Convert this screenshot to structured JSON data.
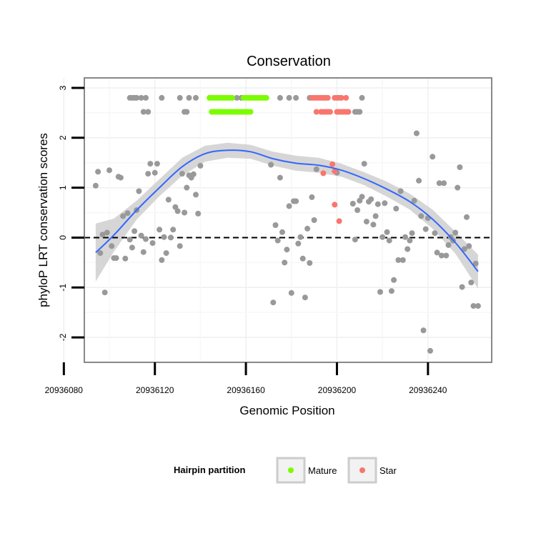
{
  "chart_data": {
    "type": "scatter",
    "title": "Conservation",
    "xlabel": "Genomic Position",
    "ylabel": "phyloP LRT conservation scores",
    "x_reversed": true,
    "xlim": [
      20936089,
      20936268
    ],
    "ylim": [
      -2.5,
      3.2
    ],
    "x_ticks": [
      20936240,
      20936200,
      20936160,
      20936120,
      20936080
    ],
    "x_tick_labels": [
      "20936240",
      "20936200",
      "20936160",
      "20936120",
      "20936080"
    ],
    "y_ticks": [
      -2,
      -1,
      0,
      1,
      2,
      3
    ],
    "y_tick_labels": [
      "-2",
      "-1",
      "0",
      "1",
      "2",
      "3"
    ],
    "reference_line": {
      "y": 0,
      "style": "dashed"
    },
    "grid": true,
    "colors": {
      "scores": "#999999",
      "mature": "#7cfc00",
      "star": "#f8766d",
      "smooth": "#3366ff",
      "band": "#cccccc"
    },
    "legend": {
      "title": "Hairpin partition",
      "placement": "bottom",
      "entries": [
        {
          "label": "Mature",
          "color": "#7cfc00"
        },
        {
          "label": "Star",
          "color": "#f8766d"
        }
      ]
    },
    "series": [
      {
        "role": "scores",
        "color": "#999999",
        "points": [
          [
            20936262,
            -1.37
          ],
          [
            20936261,
            -0.52
          ],
          [
            20936260,
            -1.37
          ],
          [
            20936259,
            -0.9
          ],
          [
            20936258,
            -0.17
          ],
          [
            20936257,
            0.41
          ],
          [
            20936256,
            -0.23
          ],
          [
            20936255,
            -0.99
          ],
          [
            20936254,
            1.41
          ],
          [
            20936253,
            1.0
          ],
          [
            20936252,
            0.1
          ],
          [
            20936251,
            -0.06
          ],
          [
            20936250,
            0.01
          ],
          [
            20936249,
            -0.15
          ],
          [
            20936248,
            -0.36
          ],
          [
            20936247,
            1.09
          ],
          [
            20936246,
            -0.36
          ],
          [
            20936245,
            1.09
          ],
          [
            20936244,
            -0.3
          ],
          [
            20936243,
            0.09
          ],
          [
            20936242,
            1.62
          ],
          [
            20936241,
            -2.27
          ],
          [
            20936240,
            0.39
          ],
          [
            20936239,
            0.17
          ],
          [
            20936238,
            -1.86
          ],
          [
            20936237,
            0.43
          ],
          [
            20936236,
            1.14
          ],
          [
            20936235,
            2.09
          ],
          [
            20936234,
            0.74
          ],
          [
            20936233,
            0.09
          ],
          [
            20936232,
            -0.06
          ],
          [
            20936231,
            -0.23
          ],
          [
            20936230,
            0.01
          ],
          [
            20936229,
            -0.45
          ],
          [
            20936228,
            0.93
          ],
          [
            20936227,
            -0.45
          ],
          [
            20936226,
            0.58
          ],
          [
            20936225,
            -0.85
          ],
          [
            20936224,
            -1.07
          ],
          [
            20936223,
            -0.06
          ],
          [
            20936222,
            0.11
          ],
          [
            20936221,
            0.69
          ],
          [
            20936220,
            0.01
          ],
          [
            20936219,
            -1.09
          ],
          [
            20936218,
            0.67
          ],
          [
            20936217,
            0.43
          ],
          [
            20936216,
            0.26
          ],
          [
            20936215,
            0.77
          ],
          [
            20936214,
            0.72
          ],
          [
            20936213,
            0.32
          ],
          [
            20936212,
            1.48
          ],
          [
            20936211,
            0.82
          ],
          [
            20936210,
            0.74
          ],
          [
            20936209,
            0.55
          ],
          [
            20936208,
            -0.04
          ],
          [
            20936207,
            0.68
          ],
          [
            20936200,
            1.3
          ],
          [
            20936191,
            1.37
          ],
          [
            20936190,
            0.35
          ],
          [
            20936189,
            0.81
          ],
          [
            20936188,
            -0.51
          ],
          [
            20936187,
            0.18
          ],
          [
            20936186,
            -1.2
          ],
          [
            20936185,
            -0.42
          ],
          [
            20936184,
            0.01
          ],
          [
            20936183,
            -0.12
          ],
          [
            20936182,
            0.73
          ],
          [
            20936181,
            0.73
          ],
          [
            20936180,
            -1.11
          ],
          [
            20936179,
            0.63
          ],
          [
            20936178,
            -0.24
          ],
          [
            20936177,
            -0.5
          ],
          [
            20936176,
            0.11
          ],
          [
            20936175,
            1.2
          ],
          [
            20936174,
            -0.06
          ],
          [
            20936173,
            0.25
          ],
          [
            20936172,
            -1.3
          ],
          [
            20936171,
            1.46
          ],
          [
            20936140,
            1.44
          ],
          [
            20936139,
            0.48
          ],
          [
            20936138,
            0.86
          ],
          [
            20936137,
            1.27
          ],
          [
            20936136,
            1.2
          ],
          [
            20936135,
            1.25
          ],
          [
            20936134,
            1.0
          ],
          [
            20936133,
            0.5
          ],
          [
            20936132,
            1.28
          ],
          [
            20936131,
            -0.17
          ],
          [
            20936130,
            0.53
          ],
          [
            20936129,
            0.61
          ],
          [
            20936128,
            0.16
          ],
          [
            20936127,
            0.0
          ],
          [
            20936126,
            0.76
          ],
          [
            20936125,
            -0.31
          ],
          [
            20936124,
            0.01
          ],
          [
            20936123,
            -0.45
          ],
          [
            20936122,
            0.16
          ],
          [
            20936121,
            1.48
          ],
          [
            20936120,
            1.3
          ],
          [
            20936119,
            -0.11
          ],
          [
            20936118,
            1.48
          ],
          [
            20936117,
            1.28
          ],
          [
            20936116,
            -0.03
          ],
          [
            20936115,
            -0.29
          ],
          [
            20936114,
            0.04
          ],
          [
            20936113,
            0.93
          ],
          [
            20936112,
            0.55
          ],
          [
            20936111,
            0.13
          ],
          [
            20936110,
            -0.2
          ],
          [
            20936109,
            -0.04
          ],
          [
            20936108,
            0.49
          ],
          [
            20936107,
            -0.42
          ],
          [
            20936106,
            0.43
          ],
          [
            20936105,
            1.2
          ],
          [
            20936104,
            1.22
          ],
          [
            20936103,
            -0.41
          ],
          [
            20936102,
            -0.41
          ],
          [
            20936101,
            -0.17
          ],
          [
            20936100,
            1.35
          ],
          [
            20936099,
            0.1
          ],
          [
            20936098,
            -1.1
          ],
          [
            20936097,
            0.06
          ],
          [
            20936096,
            -0.31
          ],
          [
            20936095,
            1.32
          ],
          [
            20936094,
            1.04
          ]
        ]
      },
      {
        "role": "scores-top",
        "color": "#999999",
        "points": [
          [
            20936211,
            2.8
          ],
          [
            20936201,
            2.8
          ],
          [
            20936188,
            2.8
          ],
          [
            20936182,
            2.8
          ],
          [
            20936179,
            2.8
          ],
          [
            20936175,
            2.8
          ],
          [
            20936138,
            2.8
          ],
          [
            20936135,
            2.8
          ],
          [
            20936131,
            2.8
          ],
          [
            20936134,
            2.52
          ],
          [
            20936133,
            2.52
          ],
          [
            20936123,
            2.8
          ],
          [
            20936116,
            2.8
          ],
          [
            20936114,
            2.8
          ],
          [
            20936112,
            2.8
          ],
          [
            20936111,
            2.8
          ],
          [
            20936110,
            2.8
          ],
          [
            20936109,
            2.8
          ],
          [
            20936117,
            2.52
          ],
          [
            20936115,
            2.52
          ],
          [
            20936210,
            2.52
          ],
          [
            20936209,
            2.52
          ],
          [
            20936208,
            2.52
          ],
          [
            20936158,
            2.8
          ],
          [
            20936156,
            2.8
          ]
        ]
      },
      {
        "name": "Star",
        "color": "#f8766d",
        "points": [
          [
            20936204,
            2.8
          ],
          [
            20936202,
            2.8
          ],
          [
            20936200,
            2.8
          ],
          [
            20936199,
            2.8
          ],
          [
            20936196,
            2.8
          ],
          [
            20936195,
            2.8
          ],
          [
            20936194,
            2.8
          ],
          [
            20936193,
            2.8
          ],
          [
            20936192,
            2.8
          ],
          [
            20936191,
            2.8
          ],
          [
            20936190,
            2.8
          ],
          [
            20936189,
            2.8
          ],
          [
            20936205,
            2.52
          ],
          [
            20936204,
            2.52
          ],
          [
            20936203,
            2.52
          ],
          [
            20936202,
            2.52
          ],
          [
            20936201,
            2.52
          ],
          [
            20936200,
            2.52
          ],
          [
            20936197,
            2.52
          ],
          [
            20936196,
            2.52
          ],
          [
            20936195,
            2.52
          ],
          [
            20936194,
            2.52
          ],
          [
            20936193,
            2.52
          ],
          [
            20936191,
            2.52
          ],
          [
            20936201,
            0.33
          ],
          [
            20936199,
            0.66
          ],
          [
            20936198,
            1.47
          ],
          [
            20936194,
            1.29
          ],
          [
            20936199,
            1.33
          ]
        ]
      },
      {
        "name": "Mature",
        "color": "#7cfc00",
        "points": [
          [
            20936169,
            2.8
          ],
          [
            20936168,
            2.8
          ],
          [
            20936167,
            2.8
          ],
          [
            20936166,
            2.8
          ],
          [
            20936165,
            2.8
          ],
          [
            20936164,
            2.8
          ],
          [
            20936163,
            2.8
          ],
          [
            20936162,
            2.8
          ],
          [
            20936161,
            2.8
          ],
          [
            20936160,
            2.8
          ],
          [
            20936159,
            2.8
          ],
          [
            20936154,
            2.8
          ],
          [
            20936153,
            2.8
          ],
          [
            20936152,
            2.8
          ],
          [
            20936151,
            2.8
          ],
          [
            20936150,
            2.8
          ],
          [
            20936149,
            2.8
          ],
          [
            20936148,
            2.8
          ],
          [
            20936147,
            2.8
          ],
          [
            20936146,
            2.8
          ],
          [
            20936145,
            2.8
          ],
          [
            20936144,
            2.8
          ],
          [
            20936162,
            2.52
          ],
          [
            20936161,
            2.52
          ],
          [
            20936160,
            2.52
          ],
          [
            20936159,
            2.52
          ],
          [
            20936158,
            2.52
          ],
          [
            20936157,
            2.52
          ],
          [
            20936156,
            2.52
          ],
          [
            20936155,
            2.52
          ],
          [
            20936154,
            2.52
          ],
          [
            20936153,
            2.52
          ],
          [
            20936152,
            2.52
          ],
          [
            20936151,
            2.52
          ],
          [
            20936150,
            2.52
          ],
          [
            20936149,
            2.52
          ],
          [
            20936148,
            2.52
          ],
          [
            20936147,
            2.52
          ],
          [
            20936146,
            2.52
          ],
          [
            20936145,
            2.52
          ]
        ]
      }
    ],
    "smooth": {
      "x": [
        20936262,
        20936252,
        20936242,
        20936232,
        20936222,
        20936212,
        20936202,
        20936192,
        20936182,
        20936172,
        20936162,
        20936152,
        20936142,
        20936132,
        20936122,
        20936112,
        20936102,
        20936094
      ],
      "y": [
        -0.68,
        -0.1,
        0.37,
        0.72,
        0.97,
        1.18,
        1.35,
        1.45,
        1.49,
        1.58,
        1.72,
        1.75,
        1.68,
        1.42,
        1.0,
        0.55,
        0.05,
        -0.3
      ],
      "lower": [
        -1.02,
        -0.32,
        0.18,
        0.56,
        0.82,
        1.05,
        1.22,
        1.3,
        1.34,
        1.44,
        1.58,
        1.6,
        1.52,
        1.24,
        0.83,
        0.36,
        -0.28,
        -0.88
      ],
      "upper": [
        -0.34,
        0.12,
        0.56,
        0.88,
        1.12,
        1.31,
        1.48,
        1.6,
        1.64,
        1.72,
        1.86,
        1.9,
        1.84,
        1.6,
        1.17,
        0.74,
        0.38,
        0.28
      ]
    }
  }
}
